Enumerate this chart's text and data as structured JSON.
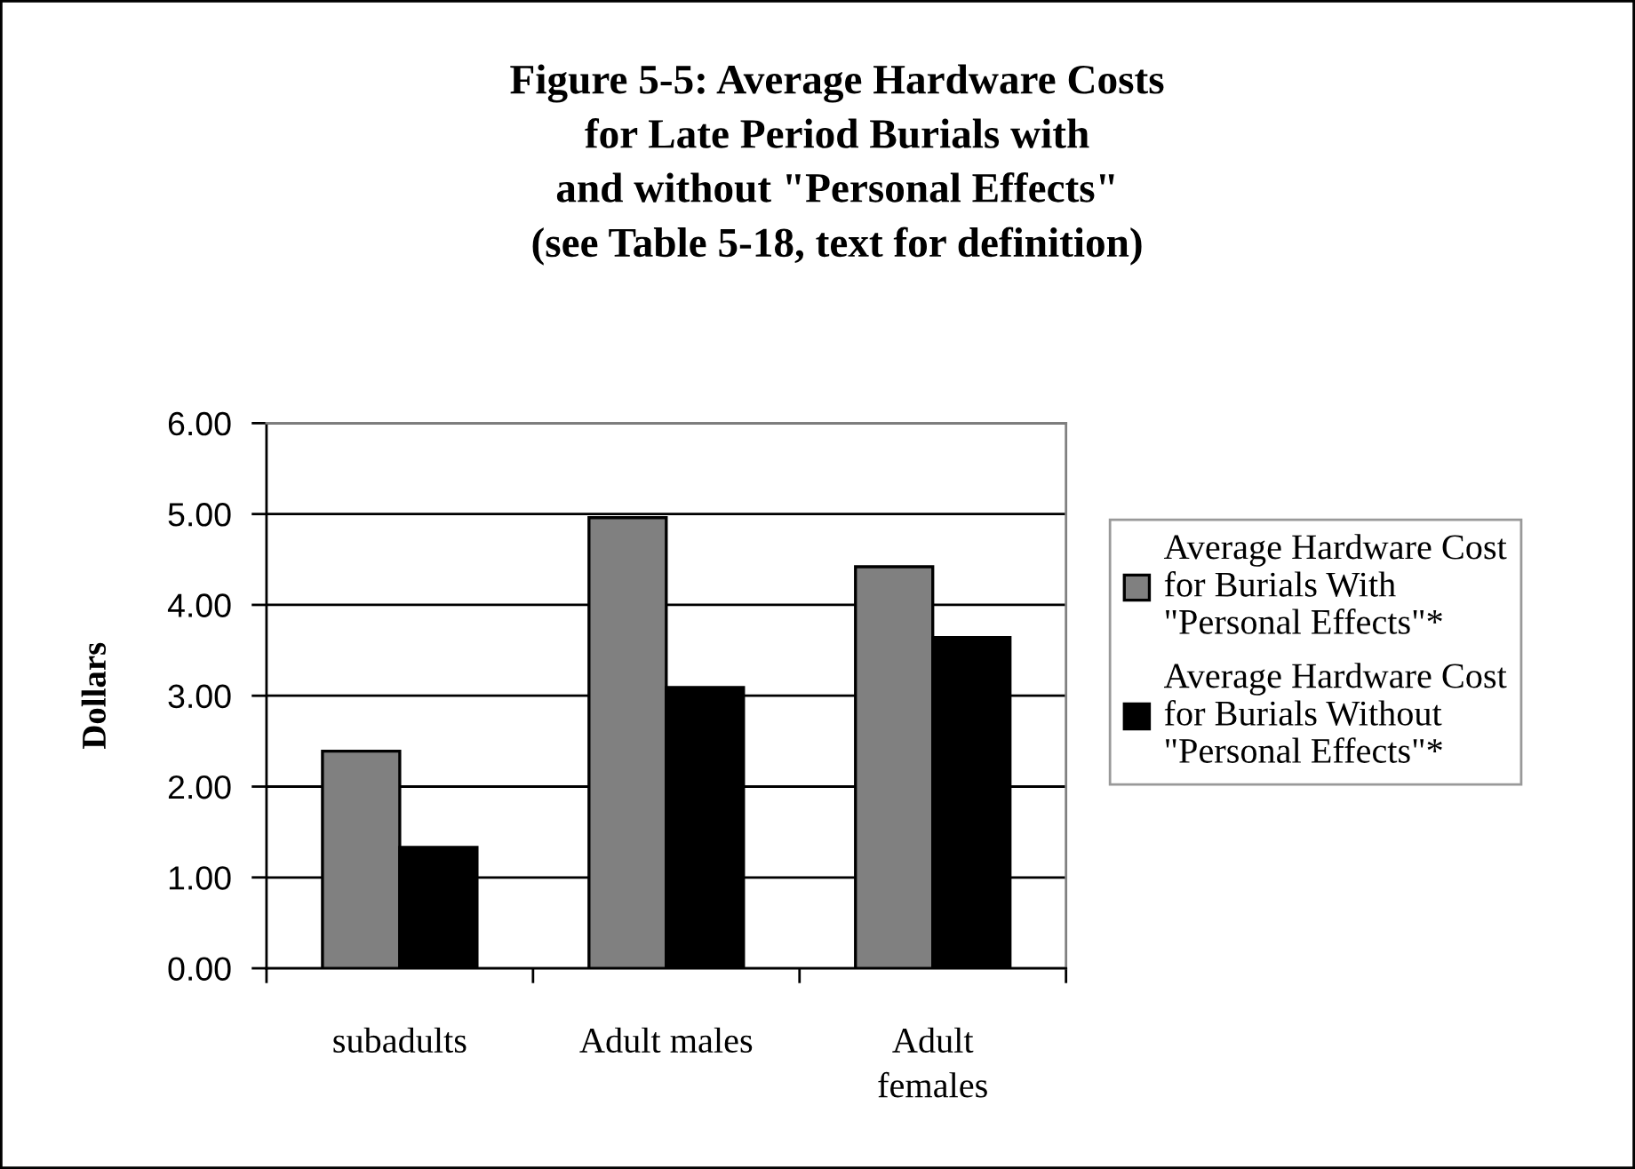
{
  "chart_data": {
    "type": "bar",
    "title": "Figure 5-5: Average Hardware Costs\nfor Late Period Burials with\nand without \"Personal Effects\"\n(see Table 5-18, text for definition)",
    "ylabel": "Dollars",
    "categories": [
      "subadults",
      "Adult males",
      "Adult\nfemales"
    ],
    "series": [
      {
        "name": "Average Hardware Cost\nfor Burials With\n\"Personal Effects\"*",
        "color": "#808080",
        "values": [
          2.39,
          4.96,
          4.42
        ]
      },
      {
        "name": "Average Hardware Cost\nfor Burials Without\n\"Personal Effects\"*",
        "color": "#000000",
        "values": [
          1.33,
          3.09,
          3.64
        ]
      }
    ],
    "ylim": [
      0,
      6
    ],
    "yticks": [
      {
        "value": 0,
        "label": "0.00"
      },
      {
        "value": 1,
        "label": "1.00"
      },
      {
        "value": 2,
        "label": "2.00"
      },
      {
        "value": 3,
        "label": "3.00"
      },
      {
        "value": 4,
        "label": "4.00"
      },
      {
        "value": 5,
        "label": "5.00"
      },
      {
        "value": 6,
        "label": "6.00"
      }
    ],
    "grid": "y",
    "legend": "right"
  }
}
